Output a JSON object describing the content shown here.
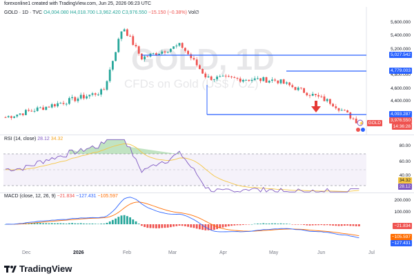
{
  "header": {
    "publisher": "forexonline1 created with TradingView.com, Jun 25, 2026 06:23 UTC"
  },
  "symbol": {
    "name": "GOLD · 1D · TVC",
    "open": "O4,004.080",
    "high": "H4,018.700",
    "low": "L3,962.420",
    "close": "C3,976.550",
    "change": "−15.150 (−0.38%)",
    "vol": "Vol∅"
  },
  "watermark": {
    "title": "GOLD, 1D",
    "subtitle": "CFDs on Gold (US$ / OZ)"
  },
  "price_axis": [
    "5,600.000",
    "5,400.000",
    "5,200.000",
    "4,800.000",
    "4,600.000",
    "4,400.000",
    "4,200.000",
    "3,800.000"
  ],
  "levels": [
    {
      "value": 5027.542,
      "label": "5,027.542"
    },
    {
      "value": 4779.003,
      "label": "4,779.003"
    },
    {
      "value": 4093.287,
      "label": "4,093.287"
    }
  ],
  "price_tag": {
    "price": "3,976.550",
    "time": "14:36:28",
    "symbol_tag": "GOLD"
  },
  "rsi": {
    "label": "RSI (14, close)",
    "value": "28.12",
    "ma": "34.32",
    "axis": [
      "80.00",
      "60.00",
      "40.00"
    ],
    "colors": {
      "line": "#7e57c2",
      "ma": "#f5c542"
    }
  },
  "macd": {
    "label": "MACD (close, 12, 26, 9)",
    "hist": "−21.834",
    "macd": "−127.431",
    "signal": "−105.597",
    "axis": [
      "200.000",
      "100.000"
    ],
    "colors": {
      "macd": "#2962ff",
      "signal": "#ff6d00",
      "up": "#26a69a",
      "down": "#ef5350"
    }
  },
  "time_axis": [
    "Dec",
    "2026",
    "Feb",
    "Mar",
    "Apr",
    "May",
    "Jun",
    "Jul"
  ],
  "branding": {
    "name": "TradingView"
  },
  "chart_data": {
    "type": "candlestick",
    "symbol": "GOLD",
    "timeframe": "1D",
    "x": [
      "2025-11",
      "2025-12",
      "2026-01",
      "2026-01-28",
      "2026-02",
      "2026-03",
      "2026-04",
      "2026-05",
      "2026-06",
      "2026-06-24"
    ],
    "close": [
      4080,
      4230,
      4500,
      5560,
      5040,
      5250,
      4720,
      4680,
      4320,
      3976.55
    ],
    "levels": [
      5027.542,
      4779.003,
      4093.287
    ],
    "ylim": [
      3800,
      5700
    ]
  }
}
